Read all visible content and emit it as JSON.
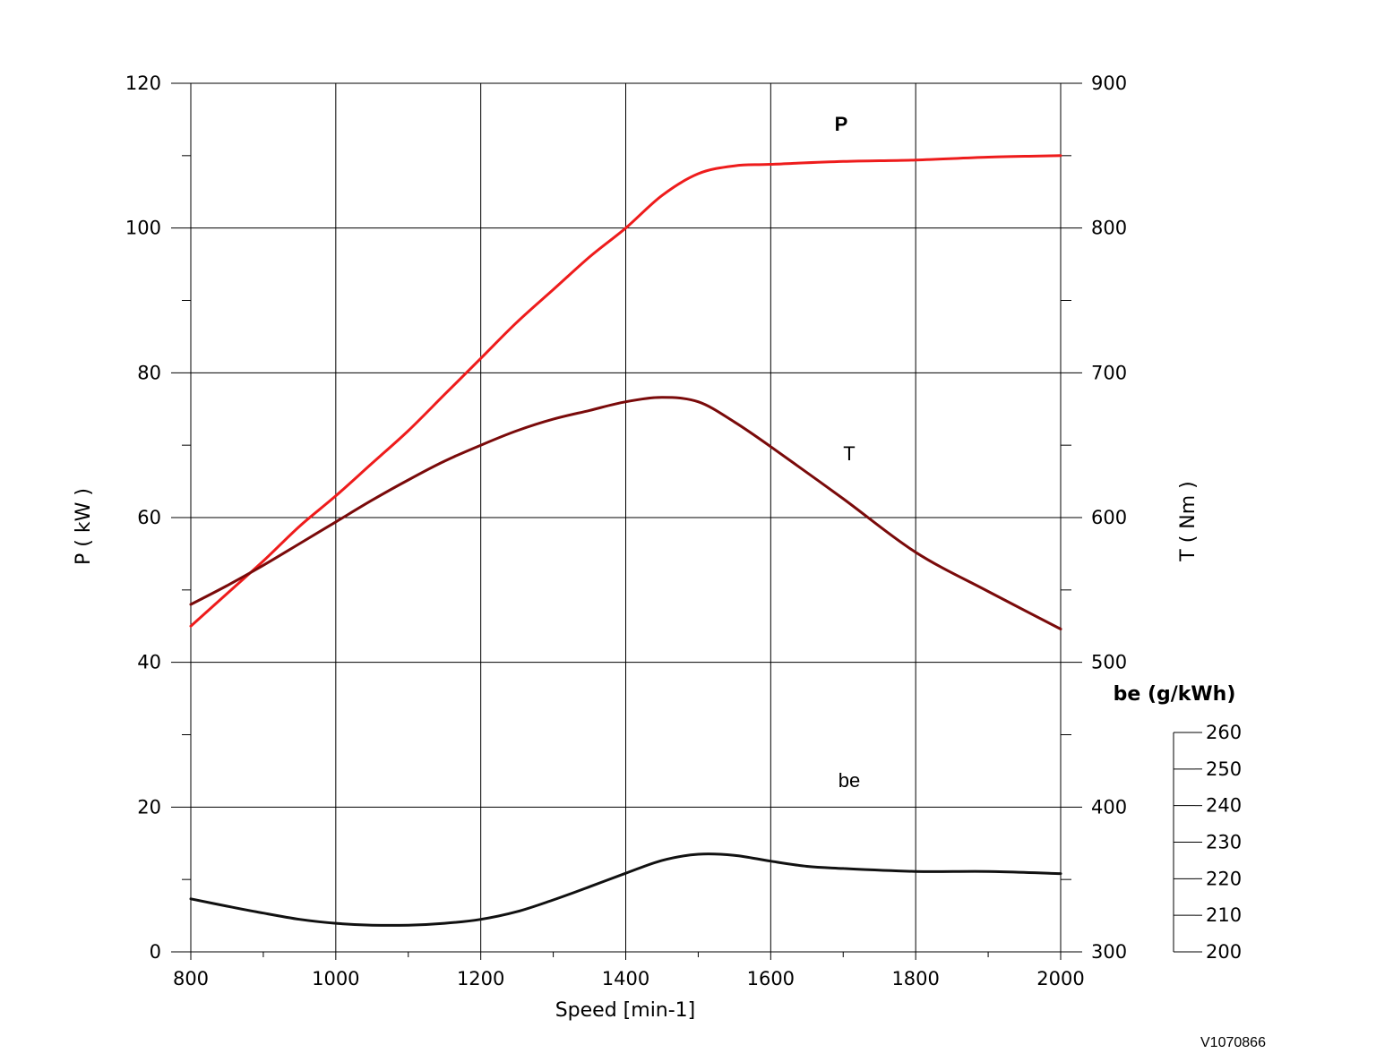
{
  "chart_data": {
    "type": "line",
    "xlabel": "Speed [min-1]",
    "xlim": [
      800,
      2000
    ],
    "xticks": [
      800,
      1000,
      1200,
      1400,
      1600,
      1800,
      2000
    ],
    "grid": true,
    "axes": {
      "power": {
        "label": "P ( kW )",
        "side": "left",
        "range": [
          0,
          120
        ],
        "ticks": [
          0,
          20,
          40,
          60,
          80,
          100,
          120
        ]
      },
      "torque": {
        "label": "T ( Nm )",
        "side": "right",
        "range": [
          300,
          900
        ],
        "ticks": [
          300,
          400,
          500,
          600,
          700,
          800,
          900
        ]
      },
      "be": {
        "label": "be (g/kWh)",
        "side": "right-outer",
        "range": [
          200,
          260
        ],
        "ticks": [
          200,
          210,
          220,
          230,
          240,
          250,
          260
        ]
      }
    },
    "series": [
      {
        "name": "P",
        "axis": "power",
        "color": "#ee1c1c",
        "x": [
          800,
          850,
          900,
          950,
          1000,
          1050,
          1100,
          1150,
          1200,
          1250,
          1300,
          1350,
          1400,
          1450,
          1500,
          1550,
          1600,
          1700,
          1800,
          1900,
          2000
        ],
        "y": [
          45,
          49.5,
          54,
          58.8,
          63,
          67.5,
          72,
          77,
          82,
          87,
          91.5,
          96,
          100,
          104.5,
          107.5,
          108.6,
          108.8,
          109.2,
          109.4,
          109.8,
          110
        ]
      },
      {
        "name": "T",
        "axis": "torque",
        "color": "#7a0a0a",
        "x": [
          800,
          850,
          900,
          950,
          1000,
          1050,
          1100,
          1150,
          1200,
          1250,
          1300,
          1350,
          1400,
          1450,
          1500,
          1550,
          1600,
          1700,
          1800,
          1900,
          2000
        ],
        "y": [
          540,
          553,
          567,
          582,
          597,
          612,
          626,
          639,
          650,
          660,
          668,
          674,
          680,
          683,
          680,
          666,
          649,
          613,
          576,
          549,
          523
        ]
      },
      {
        "name": "be",
        "axis": "be",
        "color": "#111111",
        "x": [
          800,
          850,
          900,
          950,
          1000,
          1050,
          1100,
          1150,
          1200,
          1250,
          1300,
          1350,
          1400,
          1450,
          1500,
          1550,
          1600,
          1650,
          1700,
          1800,
          1900,
          2000
        ],
        "y": [
          214.5,
          212.5,
          210.6,
          208.9,
          207.8,
          207.3,
          207.3,
          207.8,
          208.9,
          211.0,
          214.2,
          217.8,
          221.5,
          225.0,
          226.7,
          226.4,
          224.8,
          223.4,
          222.8,
          222.0,
          222.0,
          221.4
        ]
      }
    ],
    "series_labels": {
      "P": "P",
      "T": "T",
      "be": "be"
    },
    "reference_code": "V1070866"
  }
}
